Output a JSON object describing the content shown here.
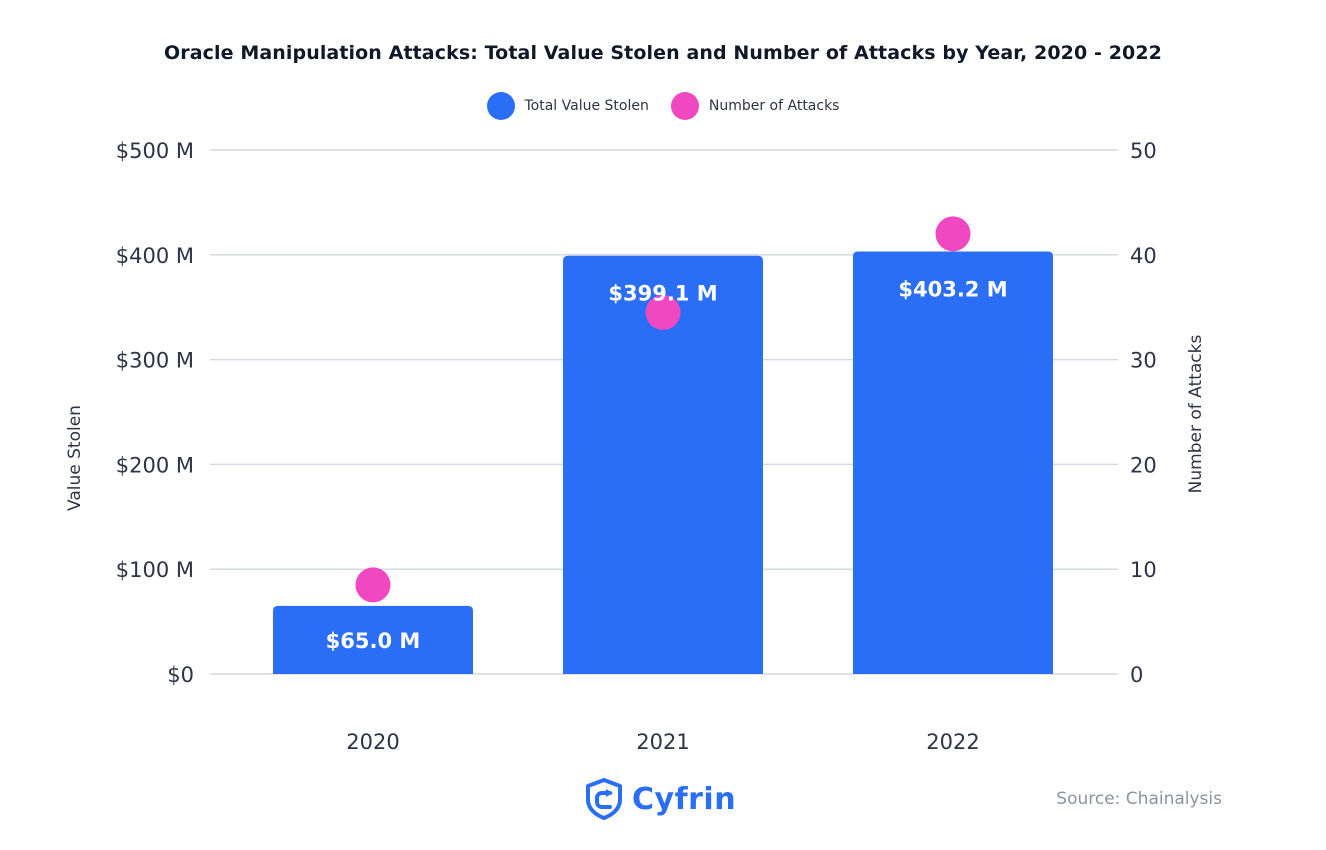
{
  "chart_data": {
    "type": "bar",
    "title": "Oracle Manipulation Attacks: Total Value Stolen and Number of Attacks by Year, 2020 - 2022",
    "categories": [
      "2020",
      "2021",
      "2022"
    ],
    "series": [
      {
        "name": "Total Value Stolen",
        "type": "bar",
        "axis": "left",
        "values": [
          65.0,
          399.1,
          403.2
        ],
        "labels": [
          "$65.0 M",
          "$399.1 M",
          "$403.2 M"
        ],
        "color": "#2b6ef6"
      },
      {
        "name": "Number of Attacks",
        "type": "scatter",
        "axis": "right",
        "values": [
          8.5,
          34.5,
          42
        ],
        "color": "#ef48c0"
      }
    ],
    "ylabel": "Value Stolen",
    "y2label": "Number of Attacks",
    "ylim": [
      0,
      500
    ],
    "y2lim": [
      0,
      50
    ],
    "yticks": [
      "$0",
      "$100 M",
      "$200 M",
      "$300 M",
      "$400 M",
      "$500 M"
    ],
    "y2ticks": [
      "0",
      "10",
      "20",
      "30",
      "40",
      "50"
    ],
    "grid": true,
    "legend": "top-center"
  },
  "footer": {
    "logo_text": "Cyfrin",
    "source": "Source: Chainalysis"
  },
  "colors": {
    "bar": "#2b6ef6",
    "dot": "#ef48c0",
    "grid": "#d5d9e0",
    "text": "#2d3446"
  },
  "icons": {
    "logo": "cyfrin-shield-icon"
  }
}
